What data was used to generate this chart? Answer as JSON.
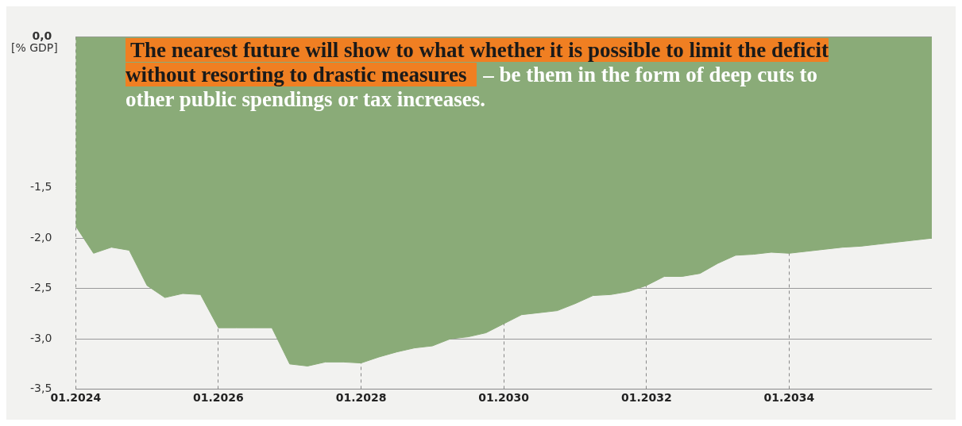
{
  "chart_data": {
    "type": "area",
    "ylabel": "[% GDP]",
    "annotations": [
      "The nearest future will show to what whether it is possible to limit the deficit without resorting to drastic measures",
      "– be them in the form of deep cuts to other public spendings or tax increases."
    ],
    "x": [
      "2024-01",
      "2024-04",
      "2024-07",
      "2024-10",
      "2025-01",
      "2025-04",
      "2025-07",
      "2025-10",
      "2026-01",
      "2026-04",
      "2026-07",
      "2026-10",
      "2027-01",
      "2027-04",
      "2027-07",
      "2027-10",
      "2028-01",
      "2028-04",
      "2028-07",
      "2028-10",
      "2029-01",
      "2029-04",
      "2029-07",
      "2029-10",
      "2030-01",
      "2030-04",
      "2030-07",
      "2030-10",
      "2031-01",
      "2031-04",
      "2031-07",
      "2031-10",
      "2032-01",
      "2032-04",
      "2032-07",
      "2032-10",
      "2033-01",
      "2033-04",
      "2033-07",
      "2033-10",
      "2034-01",
      "2034-04",
      "2034-07",
      "2034-10",
      "2035-01",
      "2035-04",
      "2035-07",
      "2035-10",
      "2036-01"
    ],
    "values": [
      -1.88,
      -2.15,
      -2.09,
      -2.12,
      -2.47,
      -2.59,
      -2.55,
      -2.56,
      -2.89,
      -2.89,
      -2.89,
      -2.89,
      -3.25,
      -3.27,
      -3.23,
      -3.23,
      -3.24,
      -3.18,
      -3.13,
      -3.09,
      -3.07,
      -3.0,
      -2.98,
      -2.94,
      -2.85,
      -2.76,
      -2.74,
      -2.72,
      -2.65,
      -2.57,
      -2.56,
      -2.53,
      -2.47,
      -2.38,
      -2.38,
      -2.35,
      -2.25,
      -2.17,
      -2.16,
      -2.14,
      -2.15,
      -2.13,
      -2.11,
      -2.09,
      -2.08,
      -2.06,
      -2.04,
      -2.02,
      -2.0
    ],
    "color": "#8aab78",
    "xlim": [
      "2024-01",
      "2036-01"
    ],
    "xticks": [
      {
        "value": "2024-01",
        "label": "01.2024"
      },
      {
        "value": "2026-01",
        "label": "01.2026"
      },
      {
        "value": "2028-01",
        "label": "01.2028"
      },
      {
        "value": "2030-01",
        "label": "01.2030"
      },
      {
        "value": "2032-01",
        "label": "01.2032"
      },
      {
        "value": "2034-01",
        "label": "01.2034"
      }
    ],
    "ylim": [
      -3.5,
      0.0
    ],
    "yticks": [
      {
        "value": 0.0,
        "label": "0,0"
      },
      {
        "value": -1.5,
        "label": "-1,5"
      },
      {
        "value": -2.0,
        "label": "-2,0"
      },
      {
        "value": -2.5,
        "label": "-2,5"
      },
      {
        "value": -3.0,
        "label": "-3,0"
      },
      {
        "value": -3.5,
        "label": "-3,5"
      }
    ],
    "grid": true
  }
}
